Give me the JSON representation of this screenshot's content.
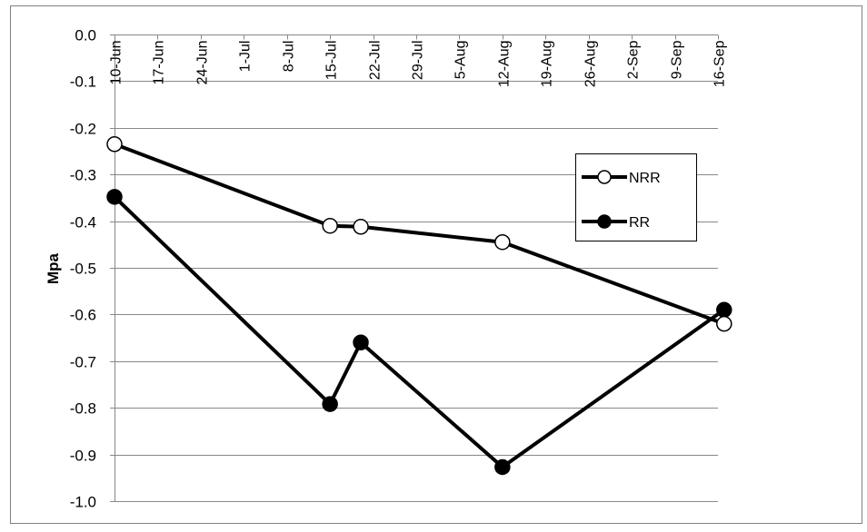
{
  "chart_data": {
    "type": "line",
    "title": "",
    "xlabel": "",
    "ylabel": "Mpa",
    "ylim": [
      -1.0,
      0.0
    ],
    "y_ticks": [
      "0.0",
      "-0.1",
      "-0.2",
      "-0.3",
      "-0.4",
      "-0.5",
      "-0.6",
      "-0.7",
      "-0.8",
      "-0.9",
      "-1.0"
    ],
    "y_tick_values": [
      0.0,
      -0.1,
      -0.2,
      -0.3,
      -0.4,
      -0.5,
      -0.6,
      -0.7,
      -0.8,
      -0.9,
      -1.0
    ],
    "x_ticks": [
      "10-Jun",
      "17-Jun",
      "24-Jun",
      "1-Jul",
      "8-Jul",
      "15-Jul",
      "22-Jul",
      "29-Jul",
      "5-Aug",
      "12-Aug",
      "19-Aug",
      "26-Aug",
      "2-Sep",
      "9-Sep",
      "16-Sep"
    ],
    "grid": true,
    "legend_position": "right",
    "series": [
      {
        "name": "NRR",
        "marker": "open-circle",
        "x": [
          "10-Jun",
          "15-Jul",
          "20-Jul",
          "12-Aug",
          "17-Sep"
        ],
        "values": [
          -0.235,
          -0.41,
          -0.412,
          -0.445,
          -0.62
        ]
      },
      {
        "name": "RR",
        "marker": "filled-circle",
        "x": [
          "10-Jun",
          "15-Jul",
          "20-Jul",
          "12-Aug",
          "17-Sep"
        ],
        "values": [
          -0.348,
          -0.792,
          -0.66,
          -0.927,
          -0.59
        ]
      }
    ],
    "colors": {
      "line": "#000000",
      "grid": "#888888",
      "border": "#808080",
      "open_marker_fill": "#ffffff",
      "filled_marker_fill": "#000000"
    }
  }
}
